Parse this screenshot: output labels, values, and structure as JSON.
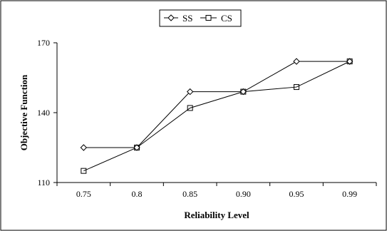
{
  "chart_data": {
    "type": "line",
    "title": "",
    "xlabel": "Reliability Level",
    "ylabel": "Objective Function",
    "categories": [
      "0.75",
      "0.8",
      "0.85",
      "0.90",
      "0.95",
      "0.99"
    ],
    "ylim": [
      110,
      170
    ],
    "yticks": [
      110,
      140,
      170
    ],
    "grid": false,
    "legend_position": "top-center",
    "series": [
      {
        "name": "SS",
        "marker": "diamond",
        "values": [
          125,
          125,
          149,
          149,
          162,
          162
        ]
      },
      {
        "name": "CS",
        "marker": "square",
        "values": [
          115,
          125,
          142,
          149,
          151,
          162
        ]
      }
    ]
  }
}
